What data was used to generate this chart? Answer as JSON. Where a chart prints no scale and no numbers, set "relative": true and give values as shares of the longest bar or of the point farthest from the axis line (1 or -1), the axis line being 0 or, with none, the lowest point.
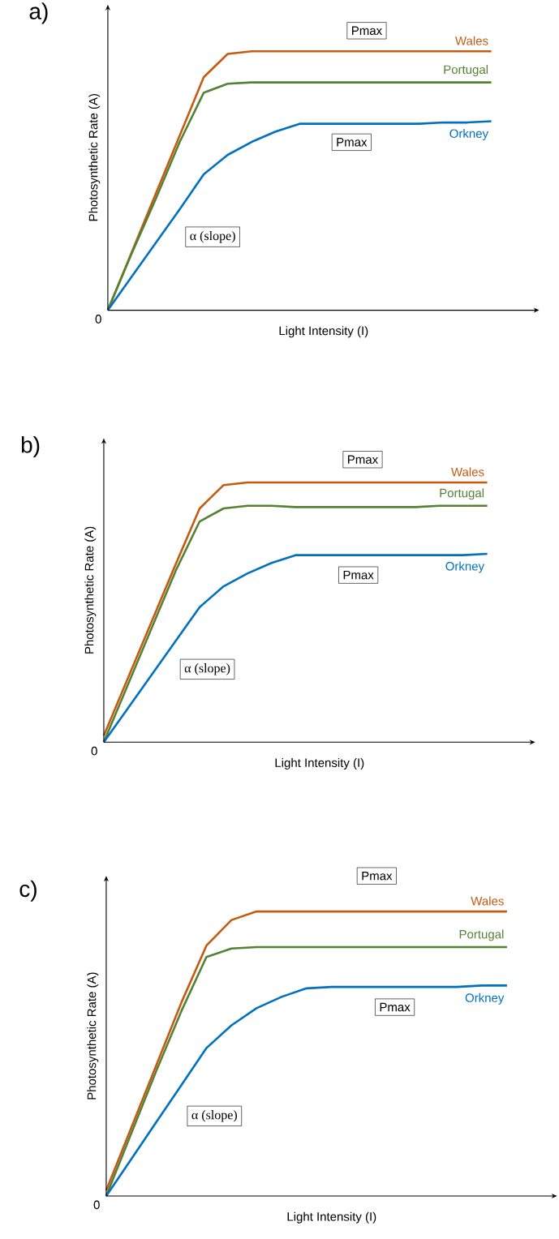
{
  "chart_data": [
    {
      "type": "line",
      "title": "a)",
      "xlabel": "Light Intensity (I)",
      "ylabel": "Photosynthetic Rate (A)",
      "relative": true,
      "categories": [
        null,
        null,
        null,
        null,
        null,
        null,
        null,
        null,
        null,
        null,
        null,
        null,
        null,
        null,
        null,
        null,
        null,
        null,
        null
      ],
      "series": [
        {
          "name": "Wales",
          "color": "#c55a11",
          "values": [
            0,
            0.225,
            0.45,
            0.675,
            0.9,
            0.99,
            1,
            1,
            1,
            1,
            1,
            1,
            1,
            1,
            1,
            1,
            1,
            null,
            null
          ]
        },
        {
          "name": "Portugal",
          "color": "#548235",
          "values": [
            0,
            0.22,
            0.43,
            0.65,
            0.84,
            0.875,
            0.88,
            0.88,
            0.88,
            0.88,
            0.88,
            0.88,
            0.88,
            0.88,
            0.88,
            0.88,
            0.88,
            null,
            null
          ]
        },
        {
          "name": "Orkney",
          "color": "#0070c0",
          "values": [
            0,
            0.13,
            0.26,
            0.39,
            0.525,
            0.6,
            0.65,
            0.69,
            0.72,
            0.72,
            0.72,
            0.72,
            0.72,
            0.72,
            0.725,
            0.725,
            0.73,
            null,
            null
          ]
        }
      ],
      "annotations": [
        "Pmax",
        "Pmax",
        "α (slope)",
        "0"
      ]
    },
    {
      "type": "line",
      "title": "b)",
      "xlabel": "Light Intensity (I)",
      "ylabel": "Photosynthetic Rate (A)",
      "relative": true,
      "categories": [
        null,
        null,
        null,
        null,
        null,
        null,
        null,
        null,
        null,
        null,
        null,
        null,
        null,
        null,
        null,
        null,
        null,
        null,
        null
      ],
      "series": [
        {
          "name": "Wales",
          "color": "#c55a11",
          "values": [
            0.025,
            0.245,
            0.465,
            0.685,
            0.9,
            0.99,
            1,
            1,
            1,
            1,
            1,
            1,
            1,
            1,
            1,
            1,
            1,
            null,
            null
          ]
        },
        {
          "name": "Portugal",
          "color": "#548235",
          "values": [
            0,
            0.22,
            0.44,
            0.66,
            0.85,
            0.9,
            0.91,
            0.91,
            0.905,
            0.905,
            0.905,
            0.905,
            0.905,
            0.905,
            0.91,
            0.91,
            0.91,
            null,
            null
          ]
        },
        {
          "name": "Orkney",
          "color": "#0070c0",
          "values": [
            0,
            0.13,
            0.26,
            0.39,
            0.52,
            0.6,
            0.65,
            0.69,
            0.72,
            0.72,
            0.72,
            0.72,
            0.72,
            0.72,
            0.72,
            0.72,
            0.725,
            null,
            null
          ]
        }
      ],
      "annotations": [
        "Pmax",
        "Pmax",
        "α (slope)",
        "0"
      ]
    },
    {
      "type": "line",
      "title": "c)",
      "xlabel": "Light Intensity (I)",
      "ylabel": "Photosynthetic Rate (A)",
      "relative": true,
      "categories": [
        null,
        null,
        null,
        null,
        null,
        null,
        null,
        null,
        null,
        null,
        null,
        null,
        null,
        null,
        null,
        null,
        null,
        null,
        null
      ],
      "series": [
        {
          "name": "Wales",
          "color": "#c55a11",
          "values": [
            0.02,
            0.24,
            0.46,
            0.68,
            0.88,
            0.97,
            1,
            1,
            1,
            1,
            1,
            1,
            1,
            1,
            1,
            1,
            1,
            null,
            null
          ]
        },
        {
          "name": "Portugal",
          "color": "#548235",
          "values": [
            0,
            0.22,
            0.44,
            0.65,
            0.84,
            0.87,
            0.875,
            0.875,
            0.875,
            0.875,
            0.875,
            0.875,
            0.875,
            0.875,
            0.875,
            0.875,
            0.875,
            null,
            null
          ]
        },
        {
          "name": "Orkney",
          "color": "#0070c0",
          "values": [
            0,
            0.13,
            0.26,
            0.39,
            0.52,
            0.6,
            0.66,
            0.7,
            0.73,
            0.735,
            0.735,
            0.735,
            0.735,
            0.735,
            0.735,
            0.74,
            0.74,
            null,
            null
          ]
        }
      ],
      "annotations": [
        "Pmax",
        "Pmax",
        "α (slope)",
        "0"
      ]
    }
  ]
}
